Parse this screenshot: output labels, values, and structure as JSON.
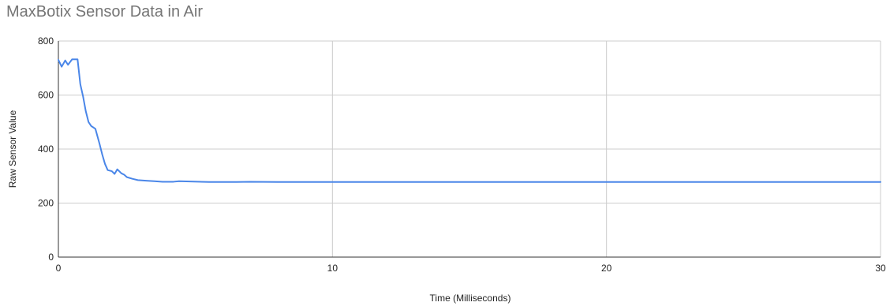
{
  "chart_data": {
    "type": "line",
    "title": "MaxBotix Sensor Data in Air",
    "xlabel": "Time (Milliseconds)",
    "ylabel": "Raw Sensor Value",
    "xlim": [
      0,
      30
    ],
    "ylim": [
      0,
      800
    ],
    "x_ticks": [
      0,
      10,
      20,
      30
    ],
    "y_ticks": [
      0,
      200,
      400,
      600,
      800
    ],
    "grid": true,
    "legend": "none",
    "series": [
      {
        "color": "#4a86e8",
        "points": [
          [
            0.0,
            730
          ],
          [
            0.12,
            705
          ],
          [
            0.25,
            728
          ],
          [
            0.35,
            712
          ],
          [
            0.5,
            732
          ],
          [
            0.7,
            732
          ],
          [
            0.8,
            640
          ],
          [
            0.9,
            595
          ],
          [
            1.0,
            540
          ],
          [
            1.1,
            500
          ],
          [
            1.2,
            485
          ],
          [
            1.35,
            475
          ],
          [
            1.5,
            420
          ],
          [
            1.6,
            380
          ],
          [
            1.7,
            345
          ],
          [
            1.8,
            322
          ],
          [
            1.95,
            318
          ],
          [
            2.05,
            308
          ],
          [
            2.15,
            325
          ],
          [
            2.3,
            310
          ],
          [
            2.4,
            305
          ],
          [
            2.5,
            296
          ],
          [
            2.7,
            290
          ],
          [
            2.9,
            285
          ],
          [
            3.2,
            283
          ],
          [
            3.5,
            281
          ],
          [
            3.8,
            279
          ],
          [
            4.2,
            279
          ],
          [
            4.4,
            281
          ],
          [
            4.8,
            280
          ],
          [
            5.5,
            278
          ],
          [
            6.5,
            278
          ],
          [
            7.0,
            279
          ],
          [
            8.0,
            278
          ],
          [
            10.0,
            278
          ],
          [
            15.0,
            278
          ],
          [
            20.0,
            278
          ],
          [
            25.0,
            278
          ],
          [
            30.0,
            278
          ]
        ]
      }
    ]
  }
}
